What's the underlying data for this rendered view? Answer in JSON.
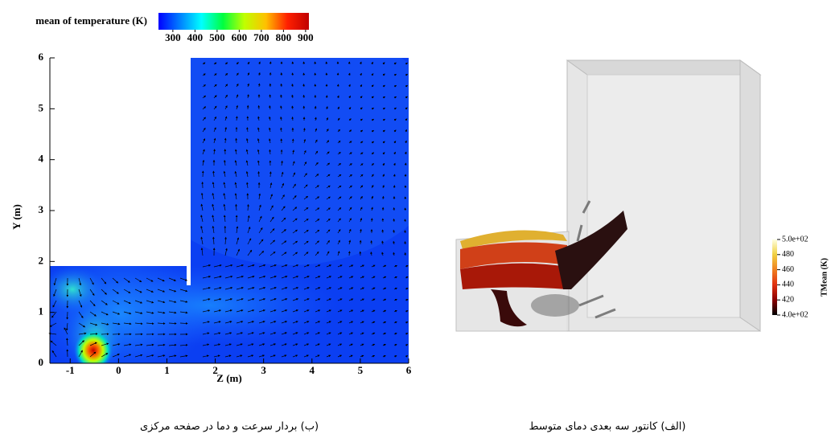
{
  "chart_data": [
    {
      "type": "vector-field",
      "title": "mean of temperature (K)",
      "xlabel": "Z (m)",
      "ylabel": "Y (m)",
      "xlim": [
        -1.42,
        6
      ],
      "ylim": [
        0,
        6
      ],
      "xticks": [
        -1,
        0,
        1,
        2,
        3,
        4,
        5,
        6
      ],
      "yticks": [
        0,
        1,
        2,
        3,
        4,
        5,
        6
      ],
      "clim": [
        235,
        915
      ],
      "cticks": [
        300,
        400,
        500,
        600,
        700,
        800,
        900
      ],
      "colormap": [
        "#0000ff",
        "#0080ff",
        "#00ffff",
        "#00ff40",
        "#c0ff00",
        "#ffc000",
        "#ff2000",
        "#c00000"
      ],
      "caption": "(ب) بردار سرعت و دما در صفحه مرکزی"
    },
    {
      "type": "isosurface",
      "colorbar_label": "TMean (K)",
      "clim": [
        400,
        500
      ],
      "cticks": [
        {
          "value": 500,
          "label": "5.0e+02"
        },
        480,
        460,
        440,
        420,
        {
          "value": 400,
          "label": "4.0e+02"
        }
      ],
      "colormap": [
        "#000000",
        "#8a0000",
        "#e03010",
        "#f08020",
        "#f0d040",
        "#ffffe0"
      ],
      "caption": "(الف) کانتور سه بعدی دمای متوسط"
    }
  ]
}
